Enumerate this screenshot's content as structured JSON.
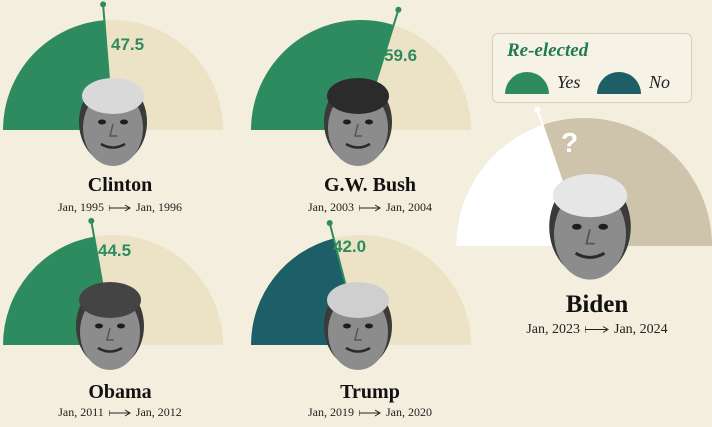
{
  "chart_data": {
    "type": "gauge",
    "title": "Re-elected",
    "legend": [
      {
        "label": "Yes",
        "color": "#2e8b5f"
      },
      {
        "label": "No",
        "color": "#1d5e67"
      }
    ],
    "scale_max": 100,
    "presidents": [
      {
        "name": "Clinton",
        "value": 47.5,
        "value_label": "47.5",
        "reelected": "Yes",
        "start": "Jan, 1995",
        "end": "Jan, 1996"
      },
      {
        "name": "G.W. Bush",
        "value": 59.6,
        "value_label": "59.6",
        "reelected": "Yes",
        "start": "Jan, 2003",
        "end": "Jan, 2004"
      },
      {
        "name": "Obama",
        "value": 44.5,
        "value_label": "44.5",
        "reelected": "Yes",
        "start": "Jan, 2011",
        "end": "Jan, 2012"
      },
      {
        "name": "Trump",
        "value": 42.0,
        "value_label": "42.0",
        "reelected": "No",
        "start": "Jan, 2019",
        "end": "Jan, 2020"
      },
      {
        "name": "Biden",
        "value": 39.5,
        "value_label": "?",
        "reelected": "unknown",
        "start": "Jan, 2023",
        "end": "Jan, 2024"
      }
    ]
  },
  "colors": {
    "yes": "#2e8b5f",
    "no": "#1d5e67",
    "track": "#ece3c6",
    "biden_fill": "#ffffff",
    "biden_track": "#cdc4ab",
    "background": "#f3eedd"
  }
}
